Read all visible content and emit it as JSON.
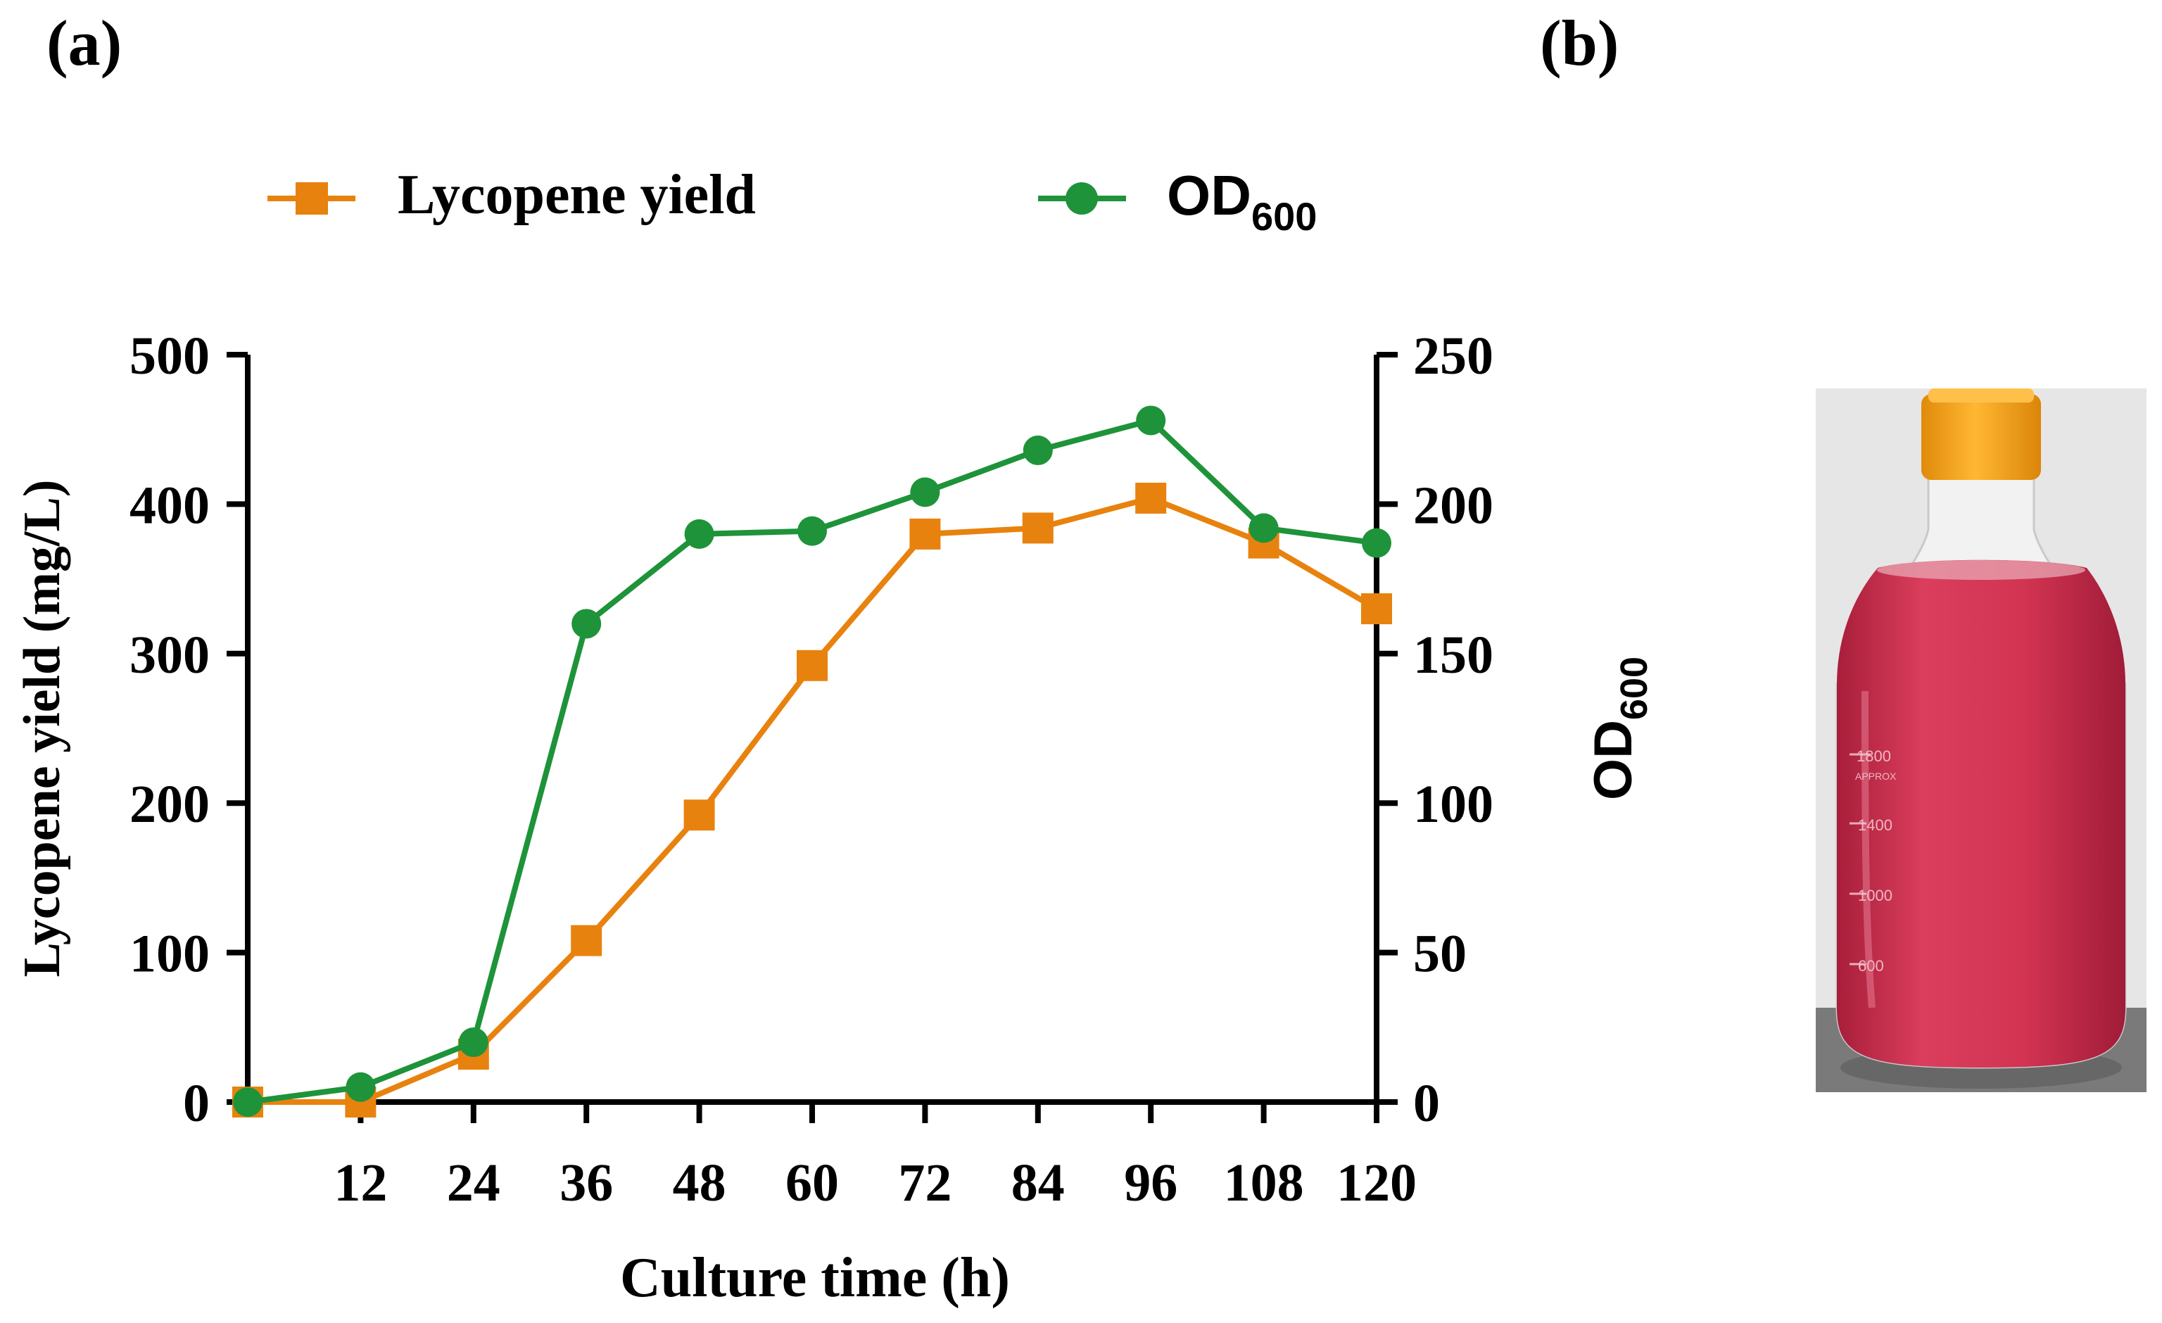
{
  "panels": {
    "a": "(a)",
    "b": "(b)"
  },
  "chart_data": {
    "type": "line",
    "x": [
      0,
      12,
      24,
      36,
      48,
      60,
      72,
      84,
      96,
      108,
      120
    ],
    "x_tick_labels": [
      "12",
      "24",
      "36",
      "48",
      "60",
      "72",
      "84",
      "96",
      "108",
      "120"
    ],
    "xlabel": "Culture time (h)",
    "xlim": [
      0,
      120
    ],
    "ylabel": "Lycopene yield (mg/L)",
    "ylim": [
      0,
      500
    ],
    "y_ticks": [
      0,
      100,
      200,
      300,
      400,
      500
    ],
    "y2label": {
      "main": "OD",
      "sub": "600"
    },
    "y2lim": [
      0,
      250
    ],
    "y2_ticks": [
      0,
      50,
      100,
      150,
      200,
      250
    ],
    "legend_position": "top",
    "series": [
      {
        "name": "Lycopene yield",
        "axis": "left",
        "marker": "square",
        "color": "#E8820E",
        "values": [
          0,
          0,
          32,
          108,
          192,
          292,
          380,
          384,
          404,
          374,
          330
        ]
      },
      {
        "name": "OD",
        "name_sub": "600",
        "axis": "right",
        "marker": "circle",
        "color": "#1E9339",
        "values": [
          0,
          5,
          20,
          160,
          190,
          191,
          204,
          218,
          228,
          192,
          187
        ]
      }
    ]
  },
  "photo": {
    "bottle_marks": [
      "1800",
      "APPROX",
      "1400",
      "1000",
      "600"
    ],
    "colors": {
      "cap": "#F5A012",
      "liquid": "#D23452",
      "background": "#E6E6E6",
      "surface": "#7A7A7A"
    }
  }
}
